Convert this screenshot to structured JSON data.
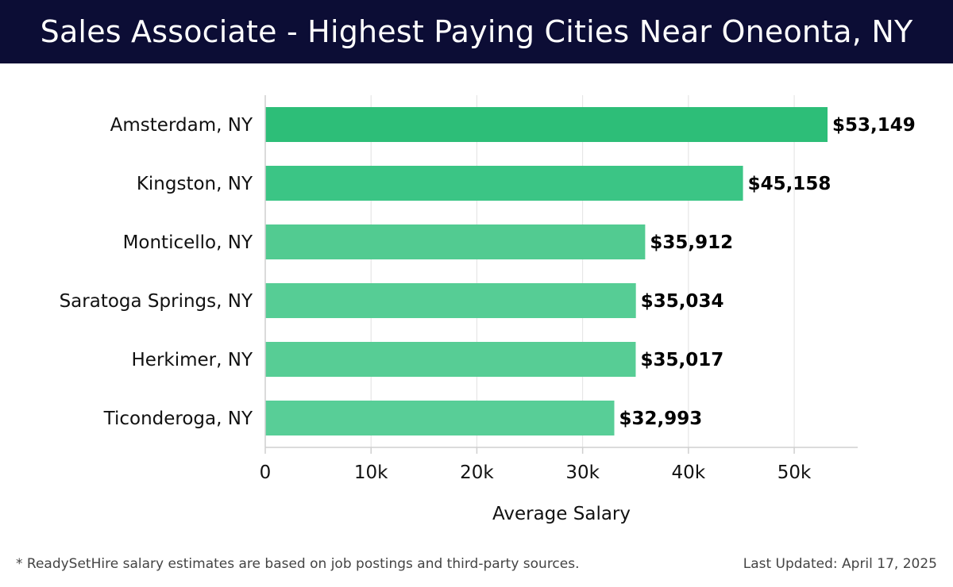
{
  "header": {
    "title": "Sales Associate - Highest Paying Cities Near Oneonta, NY"
  },
  "footer": {
    "note": "* ReadySetHire salary estimates are based on job postings and third-party sources.",
    "updated": "Last Updated: April 17, 2025"
  },
  "chart_data": {
    "type": "bar",
    "orientation": "horizontal",
    "title": "Sales Associate - Highest Paying Cities Near Oneonta, NY",
    "xlabel": "Average Salary",
    "ylabel": "",
    "categories": [
      "Amsterdam, NY",
      "Kingston, NY",
      "Monticello, NY",
      "Saratoga Springs, NY",
      "Herkimer, NY",
      "Ticonderoga, NY"
    ],
    "values": [
      53149,
      45158,
      35912,
      35034,
      35017,
      32993
    ],
    "value_labels": [
      "$53,149",
      "$45,158",
      "$35,912",
      "$35,034",
      "$35,017",
      "$32,993"
    ],
    "xlim": [
      0,
      56000
    ],
    "xticks": [
      0,
      10000,
      20000,
      30000,
      40000,
      50000
    ],
    "xtick_labels": [
      "0",
      "10k",
      "20k",
      "30k",
      "40k",
      "50k"
    ],
    "grid": true,
    "colors": [
      "#2dbe78",
      "#3bc585",
      "#52cb91",
      "#56cd95",
      "#57cd95",
      "#58ce97"
    ]
  }
}
